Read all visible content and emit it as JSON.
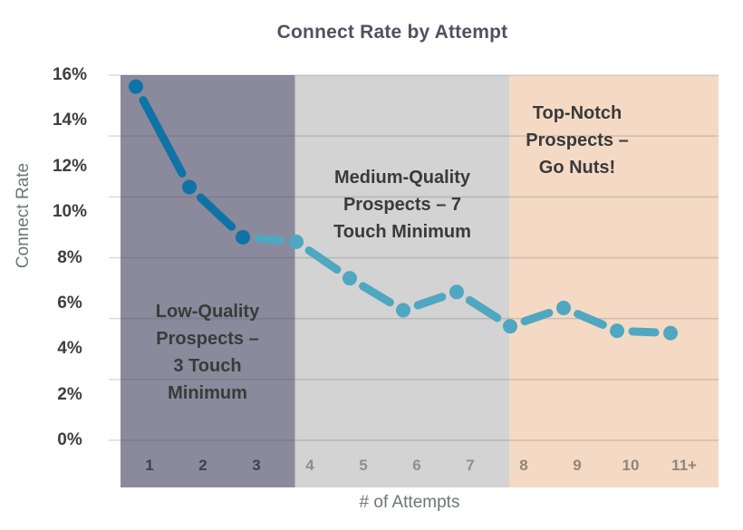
{
  "chart_data": {
    "type": "line",
    "title": "Connect Rate by Attempt",
    "xlabel": "# of Attempts",
    "ylabel": "Connect Rate",
    "categories": [
      "1",
      "2",
      "3",
      "4",
      "5",
      "6",
      "7",
      "8",
      "9",
      "10",
      "11+"
    ],
    "values": [
      15.5,
      11.1,
      8.9,
      8.7,
      7.1,
      5.7,
      6.5,
      5.0,
      5.8,
      4.8,
      4.7
    ],
    "value_unit": "percent",
    "ylim": [
      0,
      16
    ],
    "ytick_step": 2,
    "yticks": [
      "16%",
      "14%",
      "12%",
      "10%",
      "8%",
      "6%",
      "4%",
      "2%",
      "0%"
    ],
    "grid": "horizontal-only",
    "legend": "none",
    "line_style": {
      "dark_color": "#0e73a7",
      "light_color": "#4fa7c1",
      "dark_through_attempt": 3,
      "style": "thick dashed segments with round dot markers"
    },
    "regions": [
      {
        "name": "low-quality",
        "label_lines": [
          "Low-Quality",
          "Prospects –",
          "3 Touch",
          "Minimum"
        ],
        "band_color": "#8a8a9c",
        "tick_color": "#3c3f55",
        "attempts_range": "1-3",
        "category_span": [
          0,
          2
        ]
      },
      {
        "name": "medium-quality",
        "label_lines": [
          "Medium-Quality",
          "Prospects – 7",
          "Touch Minimum"
        ],
        "band_color": "#d3d3d3",
        "tick_color": "#8e8f92",
        "attempts_range": "4-7",
        "category_span": [
          3,
          6
        ]
      },
      {
        "name": "top-notch",
        "label_lines": [
          "Top-Notch",
          "Prospects –",
          "Go Nuts!"
        ],
        "band_color": "#f4dac5",
        "tick_color": "#92857a",
        "attempts_range": "8-11+",
        "category_span": [
          7,
          10
        ]
      }
    ],
    "colors": {
      "title": "#4e5260",
      "axis_title": "#717479",
      "ytick": "#3e3e3e",
      "region_label": "#3a3a3a",
      "gridline": "rgba(70,70,75,0.20)"
    }
  }
}
